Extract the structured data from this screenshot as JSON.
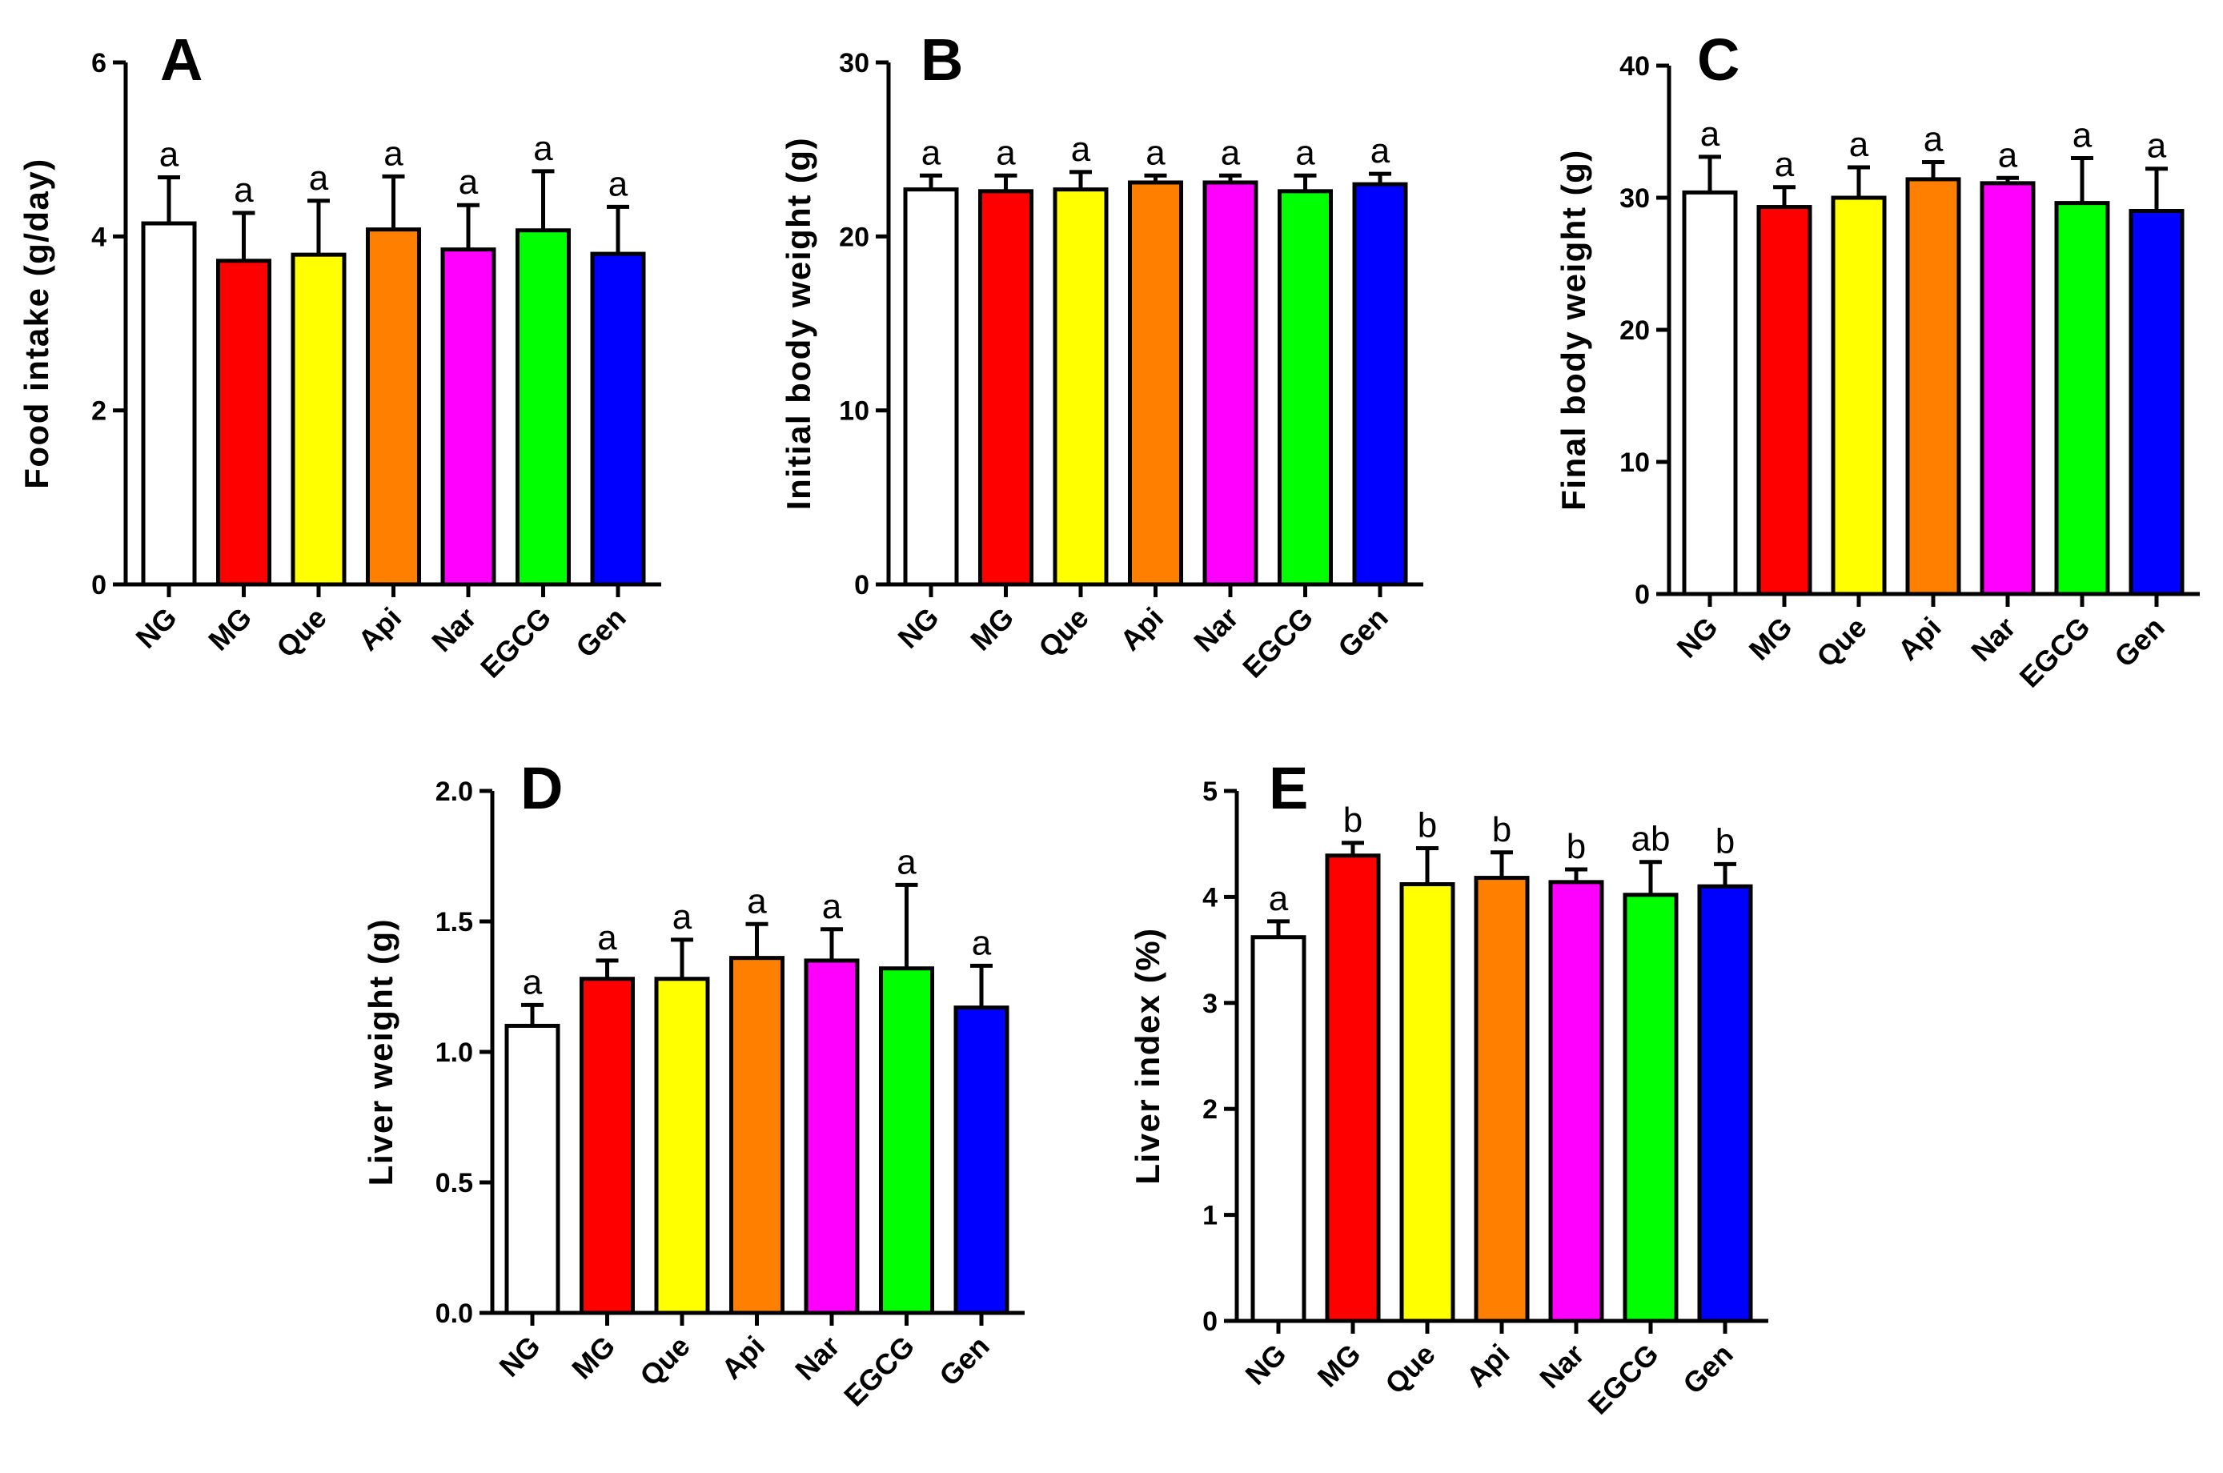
{
  "colors": {
    "NG": "#ffffff",
    "MG": "#ff0000",
    "Que": "#ffff00",
    "Api": "#ff8000",
    "Nar": "#ff00ff",
    "EGCG": "#00ff00",
    "Gen": "#0000ff"
  },
  "chart_data": [
    {
      "panel": "A",
      "type": "bar",
      "ylabel": "Food intake (g/day)",
      "categories": [
        "NG",
        "MG",
        "Que",
        "Api",
        "Nar",
        "EGCG",
        "Gen"
      ],
      "values": [
        4.15,
        3.72,
        3.79,
        4.08,
        3.85,
        4.07,
        3.8
      ],
      "errors": [
        0.53,
        0.55,
        0.62,
        0.61,
        0.51,
        0.68,
        0.54
      ],
      "significance": [
        "a",
        "a",
        "a",
        "a",
        "a",
        "a",
        "a"
      ],
      "ylim": [
        0,
        6
      ],
      "yticks": [
        0,
        2,
        4,
        6
      ],
      "ytick_labels": [
        "0",
        "2",
        "4",
        "6"
      ]
    },
    {
      "panel": "B",
      "type": "bar",
      "ylabel": "Initial body weight (g)",
      "categories": [
        "NG",
        "MG",
        "Que",
        "Api",
        "Nar",
        "EGCG",
        "Gen"
      ],
      "values": [
        22.7,
        22.6,
        22.7,
        23.1,
        23.1,
        22.6,
        23.0
      ],
      "errors": [
        0.8,
        0.9,
        1.0,
        0.4,
        0.4,
        0.9,
        0.6
      ],
      "significance": [
        "a",
        "a",
        "a",
        "a",
        "a",
        "a",
        "a"
      ],
      "ylim": [
        0,
        30
      ],
      "yticks": [
        0,
        10,
        20,
        30
      ],
      "ytick_labels": [
        "0",
        "10",
        "20",
        "30"
      ]
    },
    {
      "panel": "C",
      "type": "bar",
      "ylabel": "Final body weight (g)",
      "categories": [
        "NG",
        "MG",
        "Que",
        "Api",
        "Nar",
        "EGCG",
        "Gen"
      ],
      "values": [
        30.4,
        29.3,
        30.0,
        31.4,
        31.1,
        29.6,
        29.0
      ],
      "errors": [
        2.7,
        1.5,
        2.3,
        1.3,
        0.4,
        3.4,
        3.2
      ],
      "significance": [
        "a",
        "a",
        "a",
        "a",
        "a",
        "a",
        "a"
      ],
      "ylim": [
        0,
        40
      ],
      "yticks": [
        0,
        10,
        20,
        30,
        40
      ],
      "ytick_labels": [
        "0",
        "10",
        "20",
        "30",
        "40"
      ]
    },
    {
      "panel": "D",
      "type": "bar",
      "ylabel": "Liver weight (g)",
      "categories": [
        "NG",
        "MG",
        "Que",
        "Api",
        "Nar",
        "EGCG",
        "Gen"
      ],
      "values": [
        1.1,
        1.28,
        1.28,
        1.36,
        1.35,
        1.32,
        1.17
      ],
      "errors": [
        0.08,
        0.07,
        0.15,
        0.13,
        0.12,
        0.32,
        0.16
      ],
      "significance": [
        "a",
        "a",
        "a",
        "a",
        "a",
        "a",
        "a"
      ],
      "ylim": [
        0,
        2
      ],
      "yticks": [
        0,
        0.5,
        1,
        1.5,
        2
      ],
      "ytick_labels": [
        "0.0",
        "0.5",
        "1.0",
        "1.5",
        "2.0"
      ]
    },
    {
      "panel": "E",
      "type": "bar",
      "ylabel": "Liver index (%)",
      "categories": [
        "NG",
        "MG",
        "Que",
        "Api",
        "Nar",
        "EGCG",
        "Gen"
      ],
      "values": [
        3.62,
        4.39,
        4.12,
        4.18,
        4.14,
        4.02,
        4.1
      ],
      "errors": [
        0.15,
        0.12,
        0.34,
        0.24,
        0.12,
        0.31,
        0.21
      ],
      "significance": [
        "a",
        "b",
        "b",
        "b",
        "b",
        "ab",
        "b"
      ],
      "ylim": [
        0,
        5
      ],
      "yticks": [
        0,
        1,
        2,
        3,
        4,
        5
      ],
      "ytick_labels": [
        "0",
        "1",
        "2",
        "3",
        "4",
        "5"
      ]
    }
  ]
}
